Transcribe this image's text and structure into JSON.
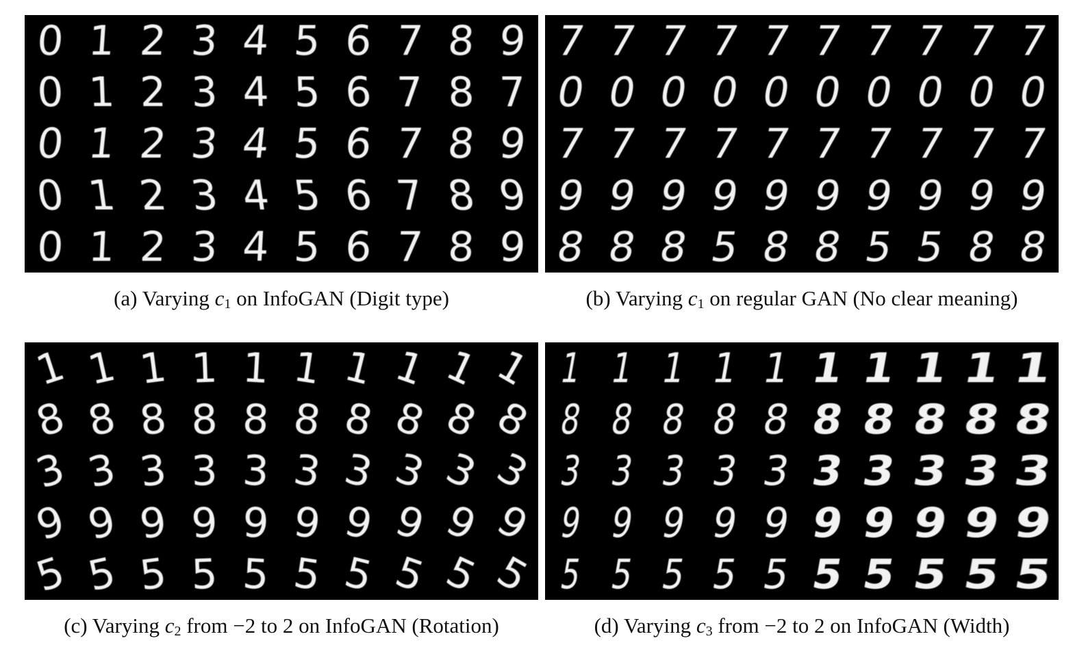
{
  "panels": [
    {
      "caption": {
        "label": "(a)",
        "text_before": "Varying",
        "var": "c",
        "sub": "1",
        "text_after": "on InfoGAN (Digit type)"
      },
      "rows": [
        [
          "0",
          "1",
          "2",
          "3",
          "4",
          "5",
          "6",
          "7",
          "8",
          "9"
        ],
        [
          "0",
          "1",
          "2",
          "3",
          "4",
          "5",
          "6",
          "7",
          "8",
          "7"
        ],
        [
          "0",
          "1",
          "2",
          "3",
          "4",
          "5",
          "6",
          "7",
          "8",
          "9"
        ],
        [
          "0",
          "1",
          "2",
          "3",
          "4",
          "5",
          "6",
          "7",
          "8",
          "9"
        ],
        [
          "0",
          "1",
          "2",
          "3",
          "4",
          "5",
          "6",
          "7",
          "8",
          "9"
        ]
      ]
    },
    {
      "caption": {
        "label": "(b)",
        "text_before": "Varying",
        "var": "c",
        "sub": "1",
        "text_after": "on regular GAN (No clear meaning)"
      },
      "rows": [
        [
          "7",
          "7",
          "7",
          "7",
          "7",
          "7",
          "7",
          "7",
          "7",
          "7"
        ],
        [
          "0",
          "0",
          "0",
          "0",
          "0",
          "0",
          "0",
          "0",
          "0",
          "0"
        ],
        [
          "7",
          "7",
          "7",
          "7",
          "7",
          "7",
          "7",
          "7",
          "7",
          "7"
        ],
        [
          "9",
          "9",
          "9",
          "9",
          "9",
          "9",
          "9",
          "9",
          "9",
          "9"
        ],
        [
          "8",
          "8",
          "8",
          "5",
          "8",
          "8",
          "5",
          "5",
          "8",
          "8"
        ]
      ]
    },
    {
      "caption": {
        "label": "(c)",
        "text_before": "Varying",
        "var": "c",
        "sub": "2",
        "text_after": "from −2 to 2 on InfoGAN (Rotation)"
      },
      "rows": [
        [
          "1",
          "1",
          "1",
          "1",
          "1",
          "1",
          "1",
          "1",
          "1",
          "1"
        ],
        [
          "8",
          "8",
          "8",
          "8",
          "8",
          "8",
          "8",
          "8",
          "8",
          "8"
        ],
        [
          "3",
          "3",
          "3",
          "3",
          "3",
          "3",
          "3",
          "3",
          "3",
          "3"
        ],
        [
          "9",
          "9",
          "9",
          "9",
          "9",
          "9",
          "9",
          "9",
          "9",
          "9"
        ],
        [
          "5",
          "5",
          "5",
          "5",
          "5",
          "5",
          "5",
          "5",
          "5",
          "5"
        ]
      ]
    },
    {
      "caption": {
        "label": "(d)",
        "text_before": "Varying",
        "var": "c",
        "sub": "3",
        "text_after": "from −2 to 2 on InfoGAN (Width)"
      },
      "rows": [
        [
          "1",
          "1",
          "1",
          "1",
          "1",
          "1",
          "1",
          "1",
          "1",
          "1"
        ],
        [
          "8",
          "8",
          "8",
          "8",
          "8",
          "8",
          "8",
          "8",
          "8",
          "8"
        ],
        [
          "3",
          "3",
          "3",
          "3",
          "3",
          "3",
          "3",
          "3",
          "3",
          "3"
        ],
        [
          "9",
          "9",
          "9",
          "9",
          "9",
          "9",
          "9",
          "9",
          "9",
          "9"
        ],
        [
          "5",
          "5",
          "5",
          "5",
          "5",
          "5",
          "5",
          "5",
          "5",
          "5"
        ]
      ]
    }
  ]
}
